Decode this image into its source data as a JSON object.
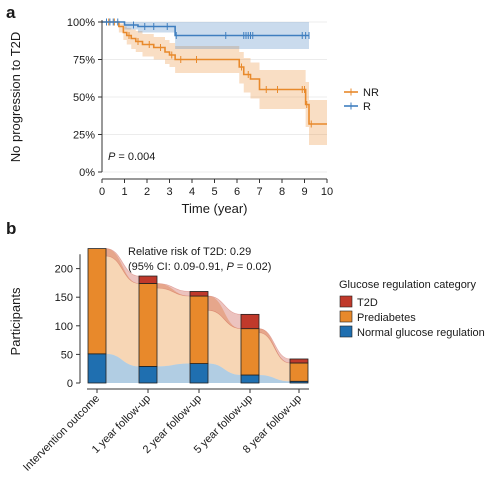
{
  "colors": {
    "NR": "#E8892B",
    "R": "#3F7EBF",
    "t2d": "#C0392B",
    "prediabetes": "#E8892B",
    "normal": "#1F6FB0"
  },
  "panel_a_label": "a",
  "panel_b_label": "b",
  "chart_data": [
    {
      "type": "line",
      "subtype": "kaplan-meier",
      "xlabel": "Time (year)",
      "ylabel": "No progression to T2D",
      "xlim": [
        0,
        10
      ],
      "ylim": [
        0,
        100
      ],
      "xticks": [
        "0",
        "1",
        "2",
        "3",
        "4",
        "5",
        "6",
        "7",
        "8",
        "9",
        "10"
      ],
      "yticks": [
        "0%",
        "25%",
        "50%",
        "75%",
        "100%"
      ],
      "annotation_p": "P",
      "annotation_rest": " = 0.004",
      "legend_position": "right",
      "series": [
        {
          "name": "NR",
          "x": [
            0,
            0.75,
            0.95,
            1.1,
            1.3,
            1.5,
            1.8,
            2.3,
            2.8,
            3.0,
            3.25,
            5.9,
            6.1,
            6.3,
            6.6,
            7.0,
            8.9,
            9.05,
            9.2,
            10
          ],
          "y": [
            100,
            97,
            93,
            91,
            89,
            87,
            85,
            83,
            80,
            78,
            75,
            75,
            70,
            65,
            62,
            55,
            55,
            45,
            32,
            32
          ],
          "ci_upper": [
            100,
            99,
            97,
            96,
            95,
            94,
            92,
            90,
            88,
            86,
            84,
            84,
            80,
            76,
            73,
            68,
            68,
            60,
            48,
            48
          ],
          "ci_lower": [
            100,
            93,
            88,
            85,
            82,
            80,
            77,
            75,
            72,
            70,
            66,
            66,
            59,
            53,
            49,
            42,
            42,
            30,
            18,
            18
          ]
        },
        {
          "name": "R",
          "x": [
            0,
            1.0,
            1.6,
            3.25,
            9.2
          ],
          "y": [
            100,
            98,
            97,
            91,
            91
          ],
          "ci_upper": [
            100,
            100,
            100,
            100,
            100
          ],
          "ci_lower": [
            100,
            95,
            93,
            82,
            82
          ]
        }
      ]
    },
    {
      "type": "bar",
      "subtype": "stacked-alluvial",
      "ylabel": "Participants",
      "ylim": [
        0,
        250
      ],
      "yticks": [
        "0",
        "50",
        "100",
        "150",
        "200"
      ],
      "categories": [
        "Intervention outcome",
        "1 year follow-up",
        "2 year follow-up",
        "5 year follow-up",
        "8 year follow-up"
      ],
      "legend_title": "Glucose regulation category",
      "legend_position": "right",
      "annotation_line1": "Relative risk of T2D: 0.29",
      "annotation_line2_a": "(95% CI: 0.09-0.91, ",
      "annotation_line2_p": "P",
      "annotation_line2_b": " = 0.02)",
      "series": [
        {
          "name": "Normal glucose regulation",
          "key": "normal",
          "values": [
            51,
            29,
            34,
            14,
            3
          ]
        },
        {
          "name": "Prediabetes",
          "key": "prediabetes",
          "values": [
            184,
            145,
            118,
            81,
            32
          ]
        },
        {
          "name": "T2D",
          "key": "t2d",
          "values": [
            0,
            13,
            8,
            25,
            7
          ]
        }
      ]
    }
  ]
}
